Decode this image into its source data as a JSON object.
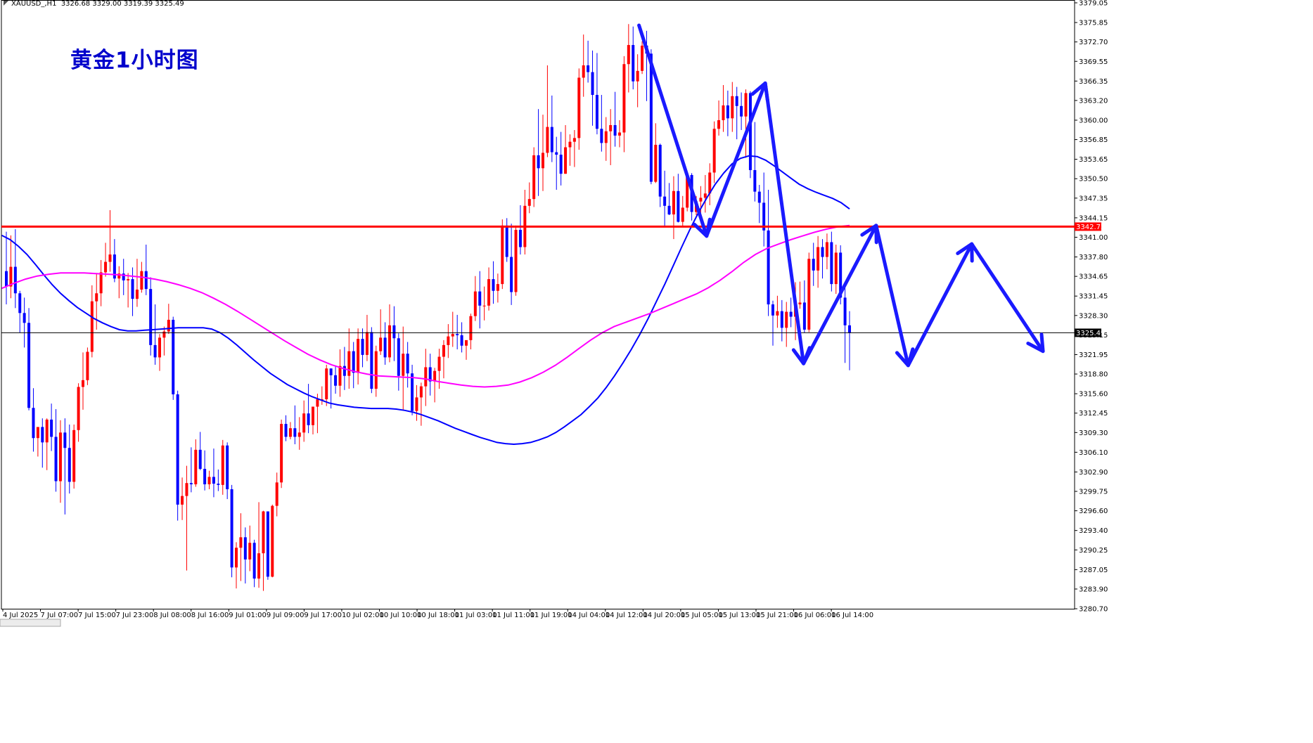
{
  "header": {
    "symbol": "XAUUSD_,H1",
    "ohlc": "3326.68 3329.00 3319.39 3325.49"
  },
  "title": "黄金1小时图",
  "colors": {
    "bull": "#ff0000",
    "bear": "#0000ff",
    "ma_fast": "#0000ff",
    "ma_slow": "#ff00ff",
    "resistance": "#ff0000",
    "arrows": "#1a1aff",
    "current": "#000000"
  },
  "chart_data": {
    "type": "candlestick",
    "ylim": [
      3280.7,
      3379.05
    ],
    "y_ticks": [
      "3379.05",
      "3375.85",
      "3372.70",
      "3369.55",
      "3366.35",
      "3363.20",
      "3360.00",
      "3356.85",
      "3353.65",
      "3350.50",
      "3347.35",
      "3344.15",
      "3341.00",
      "3337.80",
      "3334.65",
      "3331.45",
      "3328.30",
      "3325.15",
      "3321.95",
      "3318.80",
      "3315.60",
      "3312.45",
      "3309.30",
      "3306.10",
      "3302.90",
      "3299.75",
      "3296.60",
      "3293.40",
      "3290.25",
      "3287.05",
      "3283.90",
      "3280.70"
    ],
    "x_ticks": [
      "4 Jul 2025",
      "7 Jul 07:00",
      "7 Jul 15:00",
      "7 Jul 23:00",
      "8 Jul 08:00",
      "8 Jul 16:00",
      "9 Jul 01:00",
      "9 Jul 09:00",
      "9 Jul 17:00",
      "10 Jul 02:00",
      "10 Jul 10:00",
      "10 Jul 18:00",
      "11 Jul 03:00",
      "11 Jul 11:00",
      "11 Jul 19:00",
      "14 Jul 04:00",
      "14 Jul 12:00",
      "14 Jul 20:00",
      "15 Jul 05:00",
      "15 Jul 13:00",
      "15 Jul 21:00",
      "16 Jul 06:00",
      "16 Jul 14:00"
    ],
    "resistance_level": "3342.72",
    "current_price": "3325.49",
    "candles": [
      [
        3335.5,
        3341.9,
        3330.1,
        3333.0
      ],
      [
        3333.0,
        3341.3,
        3331.1,
        3336.2
      ],
      [
        3336.2,
        3342.3,
        3329.5,
        3331.9
      ],
      [
        3331.9,
        3332.3,
        3325.5,
        3328.7
      ],
      [
        3328.7,
        3331.2,
        3323.1,
        3327.1
      ],
      [
        3327.1,
        3329.5,
        3312.9,
        3313.3
      ],
      [
        3313.3,
        3316.5,
        3306.2,
        3308.4
      ],
      [
        3308.4,
        3309.7,
        3305.4,
        3310.2
      ],
      [
        3310.2,
        3311.6,
        3303.6,
        3307.7
      ],
      [
        3307.7,
        3311.6,
        3303.2,
        3311.4
      ],
      [
        3311.4,
        3314.0,
        3306.3,
        3308.6
      ],
      [
        3308.6,
        3313.1,
        3299.7,
        3301.4
      ],
      [
        3301.4,
        3311.3,
        3297.9,
        3309.3
      ],
      [
        3309.3,
        3311.6,
        3296.0,
        3306.8
      ],
      [
        3306.8,
        3310.6,
        3299.4,
        3301.3
      ],
      [
        3301.3,
        3310.6,
        3300.2,
        3309.7
      ],
      [
        3309.7,
        3317.3,
        3307.8,
        3316.7
      ],
      [
        3316.7,
        3322.3,
        3313.0,
        3317.8
      ],
      [
        3317.8,
        3323.1,
        3317.0,
        3322.4
      ],
      [
        3322.4,
        3333.2,
        3321.5,
        3330.6
      ],
      [
        3330.6,
        3335.2,
        3326.0,
        3331.9
      ],
      [
        3331.9,
        3337.3,
        3329.8,
        3335.3
      ],
      [
        3335.3,
        3340.1,
        3334.6,
        3337.0
      ],
      [
        3337.0,
        3345.4,
        3335.4,
        3338.2
      ],
      [
        3338.2,
        3340.7,
        3333.7,
        3334.3
      ],
      [
        3334.3,
        3336.3,
        3331.1,
        3335.1
      ],
      [
        3335.1,
        3337.5,
        3331.6,
        3334.0
      ],
      [
        3334.0,
        3335.2,
        3329.6,
        3334.2
      ],
      [
        3334.2,
        3336.1,
        3328.2,
        3331.0
      ],
      [
        3331.0,
        3337.5,
        3329.7,
        3332.5
      ],
      [
        3332.5,
        3337.0,
        3332.0,
        3335.5
      ],
      [
        3335.5,
        3339.8,
        3331.6,
        3332.6
      ],
      [
        3332.6,
        3334.5,
        3321.8,
        3323.5
      ],
      [
        3323.5,
        3330.1,
        3320.3,
        3321.5
      ],
      [
        3321.5,
        3325.3,
        3319.3,
        3324.7
      ],
      [
        3324.7,
        3326.5,
        3321.8,
        3325.7
      ],
      [
        3325.7,
        3330.2,
        3325.3,
        3327.6
      ],
      [
        3327.6,
        3328.1,
        3314.6,
        3315.5
      ],
      [
        3315.5,
        3316.1,
        3295.0,
        3297.6
      ],
      [
        3297.6,
        3302.0,
        3295.1,
        3299.0
      ],
      [
        3299.0,
        3303.9,
        3286.9,
        3301.1
      ],
      [
        3301.1,
        3306.9,
        3299.6,
        3300.9
      ],
      [
        3300.9,
        3308.2,
        3300.5,
        3306.5
      ],
      [
        3306.5,
        3309.4,
        3303.2,
        3303.4
      ],
      [
        3303.4,
        3306.4,
        3299.9,
        3300.9
      ],
      [
        3300.9,
        3303.1,
        3300.1,
        3302.1
      ],
      [
        3302.1,
        3306.7,
        3298.8,
        3301.0
      ],
      [
        3301.0,
        3303.3,
        3299.8,
        3300.8
      ],
      [
        3300.8,
        3308.1,
        3299.2,
        3307.2
      ],
      [
        3307.2,
        3307.7,
        3298.5,
        3300.1
      ],
      [
        3300.1,
        3300.8,
        3285.8,
        3287.4
      ],
      [
        3287.4,
        3291.5,
        3284.0,
        3290.6
      ],
      [
        3290.6,
        3296.2,
        3285.2,
        3292.3
      ],
      [
        3292.3,
        3293.9,
        3284.8,
        3288.7
      ],
      [
        3288.7,
        3294.2,
        3286.8,
        3291.4
      ],
      [
        3291.4,
        3291.9,
        3284.2,
        3285.6
      ],
      [
        3285.6,
        3298.0,
        3284.1,
        3289.7
      ],
      [
        3289.7,
        3296.6,
        3283.6,
        3296.5
      ],
      [
        3296.5,
        3296.5,
        3285.4,
        3285.9
      ],
      [
        3285.9,
        3297.6,
        3285.8,
        3297.4
      ],
      [
        3297.4,
        3302.8,
        3295.7,
        3301.2
      ],
      [
        3301.2,
        3311.4,
        3300.3,
        3310.7
      ],
      [
        3310.7,
        3312.1,
        3307.9,
        3308.6
      ],
      [
        3308.6,
        3311.0,
        3308.2,
        3310.0
      ],
      [
        3310.0,
        3313.7,
        3307.4,
        3308.6
      ],
      [
        3308.6,
        3311.8,
        3306.5,
        3309.3
      ],
      [
        3309.3,
        3314.5,
        3307.8,
        3312.4
      ],
      [
        3312.4,
        3317.2,
        3309.2,
        3310.5
      ],
      [
        3310.5,
        3313.5,
        3309.0,
        3313.5
      ],
      [
        3313.5,
        3315.6,
        3309.2,
        3314.7
      ],
      [
        3314.7,
        3316.8,
        3313.8,
        3314.7
      ],
      [
        3314.7,
        3320.3,
        3313.6,
        3319.7
      ],
      [
        3319.7,
        3319.7,
        3313.2,
        3318.6
      ],
      [
        3318.6,
        3320.2,
        3315.6,
        3316.9
      ],
      [
        3316.9,
        3322.8,
        3315.1,
        3320.1
      ],
      [
        3320.1,
        3323.2,
        3316.2,
        3318.5
      ],
      [
        3318.5,
        3326.2,
        3316.4,
        3322.5
      ],
      [
        3322.5,
        3324.0,
        3316.5,
        3319.0
      ],
      [
        3319.0,
        3326.2,
        3317.1,
        3324.5
      ],
      [
        3324.5,
        3326.2,
        3319.9,
        3321.9
      ],
      [
        3321.9,
        3328.4,
        3320.9,
        3325.6
      ],
      [
        3325.6,
        3326.4,
        3315.7,
        3316.4
      ],
      [
        3316.4,
        3323.4,
        3315.1,
        3322.5
      ],
      [
        3322.5,
        3329.3,
        3321.9,
        3324.7
      ],
      [
        3324.7,
        3327.2,
        3320.3,
        3321.5
      ],
      [
        3321.5,
        3330.1,
        3320.7,
        3326.7
      ],
      [
        3326.7,
        3329.8,
        3320.9,
        3324.6
      ],
      [
        3324.6,
        3325.4,
        3316.1,
        3318.5
      ],
      [
        3318.5,
        3326.5,
        3313.0,
        3322.1
      ],
      [
        3322.1,
        3324.0,
        3316.6,
        3318.9
      ],
      [
        3318.9,
        3320.3,
        3312.1,
        3312.8
      ],
      [
        3312.8,
        3317.0,
        3311.2,
        3315.0
      ],
      [
        3315.0,
        3317.4,
        3310.4,
        3316.8
      ],
      [
        3316.8,
        3322.9,
        3313.6,
        3319.9
      ],
      [
        3319.9,
        3322.1,
        3315.3,
        3317.6
      ],
      [
        3317.6,
        3319.8,
        3314.2,
        3319.3
      ],
      [
        3319.3,
        3322.9,
        3316.4,
        3321.6
      ],
      [
        3321.6,
        3324.3,
        3318.1,
        3323.5
      ],
      [
        3323.5,
        3326.9,
        3321.4,
        3324.9
      ],
      [
        3324.9,
        3328.9,
        3323.2,
        3325.3
      ],
      [
        3325.3,
        3328.4,
        3322.8,
        3325.1
      ],
      [
        3325.1,
        3327.2,
        3322.3,
        3323.4
      ],
      [
        3323.4,
        3324.2,
        3321.1,
        3324.3
      ],
      [
        3324.3,
        3328.6,
        3322.8,
        3328.2
      ],
      [
        3328.2,
        3334.7,
        3327.4,
        3332.2
      ],
      [
        3332.2,
        3335.5,
        3326.2,
        3329.9
      ],
      [
        3329.9,
        3333.0,
        3327.5,
        3329.9
      ],
      [
        3329.9,
        3336.1,
        3329.1,
        3334.2
      ],
      [
        3334.2,
        3337.1,
        3330.2,
        3332.3
      ],
      [
        3332.3,
        3335.1,
        3330.4,
        3333.4
      ],
      [
        3333.4,
        3343.9,
        3332.6,
        3342.9
      ],
      [
        3342.9,
        3344.1,
        3337.0,
        3337.8
      ],
      [
        3337.8,
        3343.2,
        3330.0,
        3332.1
      ],
      [
        3332.1,
        3342.9,
        3331.5,
        3342.2
      ],
      [
        3342.2,
        3346.2,
        3338.2,
        3339.4
      ],
      [
        3339.4,
        3348.7,
        3338.2,
        3346.1
      ],
      [
        3346.1,
        3349.9,
        3344.9,
        3347.2
      ],
      [
        3347.2,
        3355.6,
        3345.9,
        3354.3
      ],
      [
        3354.3,
        3361.8,
        3347.7,
        3352.2
      ],
      [
        3352.2,
        3360.9,
        3348.5,
        3354.7
      ],
      [
        3354.7,
        3368.9,
        3354.0,
        3358.9
      ],
      [
        3358.9,
        3364.0,
        3353.2,
        3354.8
      ],
      [
        3354.8,
        3357.3,
        3348.7,
        3354.4
      ],
      [
        3354.4,
        3358.1,
        3349.4,
        3351.3
      ],
      [
        3351.3,
        3359.2,
        3351.3,
        3355.6
      ],
      [
        3355.6,
        3357.7,
        3352.6,
        3356.5
      ],
      [
        3356.5,
        3358.4,
        3352.4,
        3357.1
      ],
      [
        3357.1,
        3368.4,
        3355.2,
        3366.9
      ],
      [
        3366.9,
        3373.9,
        3363.8,
        3368.9
      ],
      [
        3368.9,
        3372.9,
        3366.1,
        3367.8
      ],
      [
        3367.8,
        3371.3,
        3359.1,
        3364.1
      ],
      [
        3364.1,
        3370.9,
        3357.7,
        3358.6
      ],
      [
        3358.6,
        3364.1,
        3354.9,
        3356.3
      ],
      [
        3356.3,
        3360.5,
        3353.4,
        3358.2
      ],
      [
        3358.2,
        3361.8,
        3352.7,
        3359.2
      ],
      [
        3359.2,
        3364.6,
        3355.7,
        3357.5
      ],
      [
        3357.5,
        3360.0,
        3355.6,
        3358.0
      ],
      [
        3358.0,
        3370.4,
        3354.8,
        3369.1
      ],
      [
        3369.1,
        3375.6,
        3364.5,
        3372.2
      ],
      [
        3372.2,
        3375.2,
        3365.0,
        3366.3
      ],
      [
        3366.3,
        3370.7,
        3362.1,
        3368.0
      ],
      [
        3368.0,
        3372.8,
        3367.5,
        3372.1
      ],
      [
        3372.1,
        3374.5,
        3363.1,
        3370.8
      ],
      [
        3370.8,
        3371.5,
        3349.6,
        3350.0
      ],
      [
        3350.0,
        3359.5,
        3349.8,
        3356.0
      ],
      [
        3356.0,
        3356.2,
        3345.9,
        3347.6
      ],
      [
        3347.6,
        3351.8,
        3342.8,
        3346.1
      ],
      [
        3346.1,
        3349.8,
        3344.6,
        3344.7
      ],
      [
        3344.7,
        3350.9,
        3340.7,
        3348.5
      ],
      [
        3348.5,
        3351.3,
        3343.4,
        3343.5
      ],
      [
        3343.5,
        3347.7,
        3342.8,
        3345.8
      ],
      [
        3345.8,
        3351.6,
        3345.2,
        3351.1
      ],
      [
        3351.1,
        3351.4,
        3343.7,
        3345.1
      ],
      [
        3345.1,
        3347.7,
        3344.6,
        3346.8
      ],
      [
        3346.8,
        3349.3,
        3343.4,
        3347.4
      ],
      [
        3347.4,
        3351.1,
        3345.0,
        3348.1
      ],
      [
        3348.1,
        3353.0,
        3346.2,
        3351.5
      ],
      [
        3351.5,
        3359.8,
        3349.8,
        3358.6
      ],
      [
        3358.6,
        3363.2,
        3357.5,
        3360.0
      ],
      [
        3360.0,
        3365.7,
        3358.1,
        3362.4
      ],
      [
        3362.4,
        3364.8,
        3357.4,
        3360.3
      ],
      [
        3360.3,
        3366.2,
        3358.1,
        3363.9
      ],
      [
        3363.9,
        3365.4,
        3356.9,
        3362.3
      ],
      [
        3362.3,
        3364.5,
        3358.4,
        3360.6
      ],
      [
        3360.6,
        3365.0,
        3353.9,
        3364.4
      ],
      [
        3364.4,
        3364.7,
        3350.6,
        3351.9
      ],
      [
        3351.9,
        3359.7,
        3346.8,
        3348.4
      ],
      [
        3348.4,
        3349.5,
        3343.3,
        3346.6
      ],
      [
        3346.6,
        3351.5,
        3339.5,
        3342.1
      ],
      [
        3342.1,
        3348.7,
        3328.2,
        3330.1
      ],
      [
        3330.1,
        3330.7,
        3323.4,
        3328.3
      ],
      [
        3328.3,
        3331.5,
        3326.3,
        3329.0
      ],
      [
        3329.0,
        3330.8,
        3324.1,
        3326.3
      ],
      [
        3326.3,
        3330.5,
        3323.2,
        3328.9
      ],
      [
        3328.9,
        3331.2,
        3326.4,
        3328.1
      ],
      [
        3328.1,
        3333.7,
        3324.3,
        3330.1
      ],
      [
        3330.1,
        3333.8,
        3329.4,
        3330.4
      ],
      [
        3330.4,
        3334.0,
        3325.5,
        3326.0
      ],
      [
        3326.0,
        3338.5,
        3325.6,
        3337.5
      ],
      [
        3337.5,
        3340.1,
        3333.1,
        3335.6
      ],
      [
        3335.6,
        3341.2,
        3332.8,
        3339.4
      ],
      [
        3339.4,
        3340.7,
        3334.3,
        3337.8
      ],
      [
        3337.8,
        3341.6,
        3335.8,
        3340.2
      ],
      [
        3340.2,
        3341.9,
        3332.2,
        3333.4
      ],
      [
        3333.4,
        3339.8,
        3331.8,
        3338.5
      ],
      [
        3338.5,
        3339.7,
        3330.1,
        3331.2
      ],
      [
        3331.2,
        3333.2,
        3320.6,
        3326.7
      ],
      [
        3326.7,
        3329.0,
        3319.4,
        3325.5
      ]
    ],
    "ma_fast_values": [
      3341.3,
      3340.6,
      3339.5,
      3338.2,
      3336.6,
      3334.9,
      3333.3,
      3331.9,
      3330.7,
      3329.6,
      3328.7,
      3327.8,
      3327.1,
      3326.5,
      3326.0,
      3325.8,
      3325.8,
      3325.9,
      3326.0,
      3326.1,
      3326.2,
      3326.3,
      3326.3,
      3326.3,
      3326.3,
      3326.1,
      3325.5,
      3324.6,
      3323.5,
      3322.3,
      3321.1,
      3320.0,
      3318.9,
      3318.0,
      3317.1,
      3316.4,
      3315.7,
      3315.1,
      3314.6,
      3314.1,
      3313.8,
      3313.6,
      3313.4,
      3313.3,
      3313.2,
      3313.2,
      3313.2,
      3313.1,
      3312.9,
      3312.6,
      3312.2,
      3311.7,
      3311.2,
      3310.6,
      3310.0,
      3309.5,
      3309.0,
      3308.5,
      3308.1,
      3307.7,
      3307.5,
      3307.4,
      3307.5,
      3307.7,
      3308.1,
      3308.6,
      3309.3,
      3310.2,
      3311.2,
      3312.2,
      3313.5,
      3314.9,
      3316.6,
      3318.5,
      3320.6,
      3322.8,
      3325.2,
      3327.8,
      3330.6,
      3333.4,
      3336.4,
      3339.4,
      3342.3,
      3345.0,
      3347.4,
      3349.6,
      3351.4,
      3352.9,
      3353.8,
      3354.2,
      3354.1,
      3353.5,
      3352.6,
      3351.6,
      3350.6,
      3349.6,
      3348.9,
      3348.3,
      3347.8,
      3347.3,
      3346.6,
      3345.6
    ],
    "ma_slow_values": [
      3332.7,
      3333.5,
      3334.2,
      3334.7,
      3335.0,
      3335.2,
      3335.2,
      3335.2,
      3335.1,
      3335.0,
      3334.9,
      3334.7,
      3334.5,
      3334.2,
      3333.8,
      3333.3,
      3332.7,
      3332.0,
      3331.1,
      3330.1,
      3329.0,
      3327.8,
      3326.6,
      3325.4,
      3324.2,
      3323.1,
      3322.0,
      3321.1,
      3320.3,
      3319.7,
      3319.2,
      3318.8,
      3318.5,
      3318.4,
      3318.3,
      3318.2,
      3318.0,
      3317.6,
      3317.3,
      3317.0,
      3316.8,
      3316.7,
      3316.8,
      3317.0,
      3317.5,
      3318.2,
      3319.1,
      3320.2,
      3321.5,
      3322.9,
      3324.3,
      3325.5,
      3326.5,
      3327.2,
      3327.9,
      3328.6,
      3329.4,
      3330.2,
      3331.0,
      3331.8,
      3332.8,
      3334.0,
      3335.4,
      3336.9,
      3338.2,
      3339.2,
      3339.9,
      3340.6,
      3341.2,
      3341.8,
      3342.3,
      3342.7,
      3342.9
    ]
  }
}
